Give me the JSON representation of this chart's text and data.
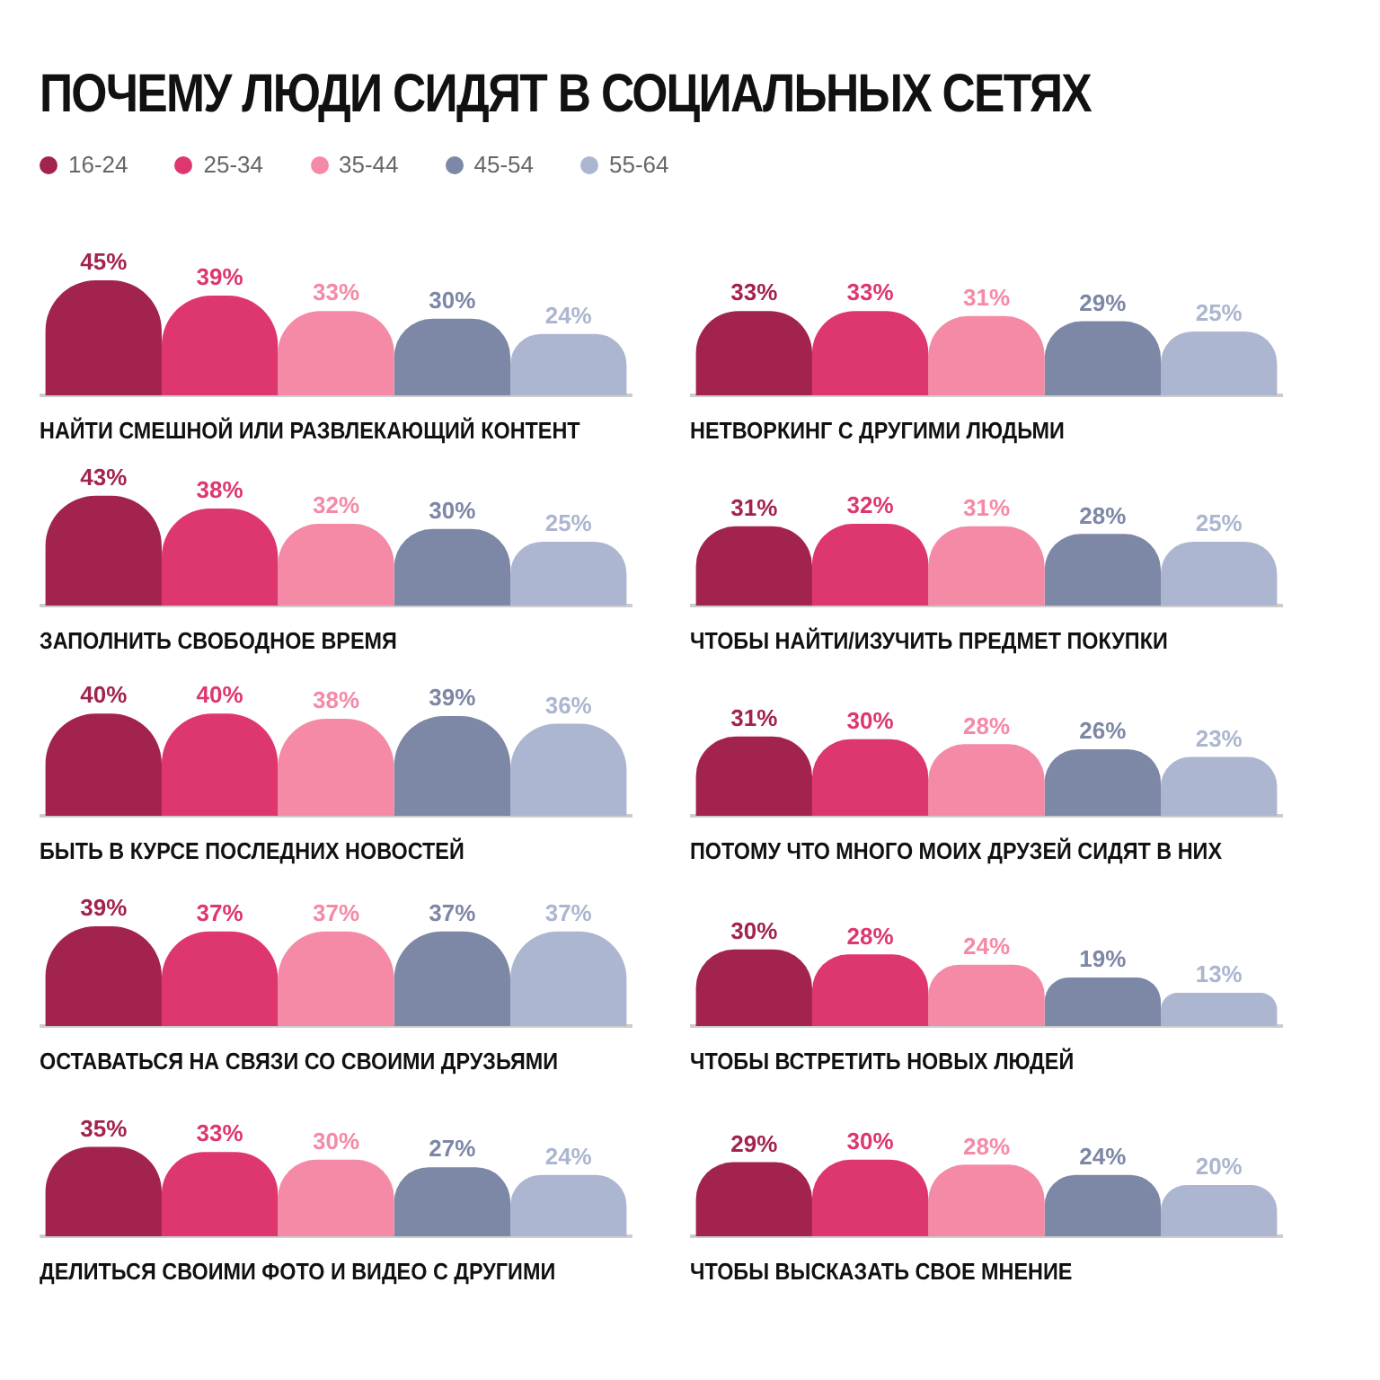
{
  "chart_data": [
    {
      "type": "bar",
      "title": "ПОЧЕМУ ЛЮДИ СИДЯТ В СОЦИАЛЬНЫХ СЕТЯХ",
      "legend": "top left",
      "xlabel": "НАЙТИ СМЕШНОЙ ИЛИ РАЗВЛЕКАЮЩИЙ КОНТЕНТ",
      "categories": [
        null
      ],
      "series": [
        {
          "name": "16-24",
          "color": "#a3234f",
          "values": [
            45
          ],
          "value_labels": [
            "45%"
          ]
        },
        {
          "name": "25-34",
          "color": "#de3770",
          "values": [
            39
          ],
          "value_labels": [
            "39%"
          ]
        },
        {
          "name": "35-44",
          "color": "#f58aa6",
          "values": [
            33
          ],
          "value_labels": [
            "33%"
          ]
        },
        {
          "name": "45-54",
          "color": "#7d87a6",
          "values": [
            30
          ],
          "value_labels": [
            "30%"
          ]
        },
        {
          "name": "55-64",
          "color": "#adb6d0",
          "values": [
            24
          ],
          "value_labels": [
            "24%"
          ]
        }
      ]
    },
    {
      "type": "bar",
      "xlabel": "НЕТВОРКИНГ С ДРУГИМИ ЛЮДЬМИ",
      "categories": [
        null
      ],
      "series": [
        {
          "color": "#a3234f",
          "values": [
            33
          ],
          "value_labels": [
            "33%"
          ]
        },
        {
          "color": "#de3770",
          "values": [
            33
          ],
          "value_labels": [
            "33%"
          ]
        },
        {
          "color": "#f58aa6",
          "values": [
            31
          ],
          "value_labels": [
            "31%"
          ]
        },
        {
          "color": "#7d87a6",
          "values": [
            29
          ],
          "value_labels": [
            "29%"
          ]
        },
        {
          "color": "#adb6d0",
          "values": [
            25
          ],
          "value_labels": [
            "25%"
          ]
        }
      ]
    },
    {
      "type": "bar",
      "xlabel": "ЗАПОЛНИТЬ СВОБОДНОЕ ВРЕМЯ",
      "categories": [
        null
      ],
      "series": [
        {
          "color": "#a3234f",
          "values": [
            43
          ],
          "value_labels": [
            "43%"
          ]
        },
        {
          "color": "#de3770",
          "values": [
            38
          ],
          "value_labels": [
            "38%"
          ]
        },
        {
          "color": "#f58aa6",
          "values": [
            32
          ],
          "value_labels": [
            "32%"
          ]
        },
        {
          "color": "#7d87a6",
          "values": [
            30
          ],
          "value_labels": [
            "30%"
          ]
        },
        {
          "color": "#adb6d0",
          "values": [
            25
          ],
          "value_labels": [
            "25%"
          ]
        }
      ]
    },
    {
      "type": "bar",
      "xlabel": "ЧТОБЫ НАЙТИ/ИЗУЧИТЬ ПРЕДМЕТ ПОКУПКИ",
      "categories": [
        null
      ],
      "series": [
        {
          "color": "#a3234f",
          "values": [
            31
          ],
          "value_labels": [
            "31%"
          ]
        },
        {
          "color": "#de3770",
          "values": [
            32
          ],
          "value_labels": [
            "32%"
          ]
        },
        {
          "color": "#f58aa6",
          "values": [
            31
          ],
          "value_labels": [
            "31%"
          ]
        },
        {
          "color": "#7d87a6",
          "values": [
            28
          ],
          "value_labels": [
            "28%"
          ]
        },
        {
          "color": "#adb6d0",
          "values": [
            25
          ],
          "value_labels": [
            "25%"
          ]
        }
      ]
    },
    {
      "type": "bar",
      "xlabel": "БЫТЬ В КУРСЕ ПОСЛЕДНИХ НОВОСТЕЙ",
      "categories": [
        null
      ],
      "series": [
        {
          "color": "#a3234f",
          "values": [
            40
          ],
          "value_labels": [
            "40%"
          ]
        },
        {
          "color": "#de3770",
          "values": [
            40
          ],
          "value_labels": [
            "40%"
          ]
        },
        {
          "color": "#f58aa6",
          "values": [
            38
          ],
          "value_labels": [
            "38%"
          ]
        },
        {
          "color": "#7d87a6",
          "values": [
            39
          ],
          "value_labels": [
            "39%"
          ]
        },
        {
          "color": "#adb6d0",
          "values": [
            36
          ],
          "value_labels": [
            "36%"
          ]
        }
      ]
    },
    {
      "type": "bar",
      "xlabel": "ПОТОМУ ЧТО МНОГО МОИХ ДРУЗЕЙ СИДЯТ В НИХ",
      "categories": [
        null
      ],
      "series": [
        {
          "color": "#a3234f",
          "values": [
            31
          ],
          "value_labels": [
            "31%"
          ]
        },
        {
          "color": "#de3770",
          "values": [
            30
          ],
          "value_labels": [
            "30%"
          ]
        },
        {
          "color": "#f58aa6",
          "values": [
            28
          ],
          "value_labels": [
            "28%"
          ]
        },
        {
          "color": "#7d87a6",
          "values": [
            26
          ],
          "value_labels": [
            "26%"
          ]
        },
        {
          "color": "#adb6d0",
          "values": [
            23
          ],
          "value_labels": [
            "23%"
          ]
        }
      ]
    },
    {
      "type": "bar",
      "xlabel": "ОСТАВАТЬСЯ НА СВЯЗИ СО СВОИМИ ДРУЗЬЯМИ",
      "categories": [
        null
      ],
      "series": [
        {
          "color": "#a3234f",
          "values": [
            39
          ],
          "value_labels": [
            "39%"
          ]
        },
        {
          "color": "#de3770",
          "values": [
            37
          ],
          "value_labels": [
            "37%"
          ]
        },
        {
          "color": "#f58aa6",
          "values": [
            37
          ],
          "value_labels": [
            "37%"
          ]
        },
        {
          "color": "#7d87a6",
          "values": [
            37
          ],
          "value_labels": [
            "37%"
          ]
        },
        {
          "color": "#adb6d0",
          "values": [
            37
          ],
          "value_labels": [
            "37%"
          ]
        }
      ]
    },
    {
      "type": "bar",
      "xlabel": "ЧТОБЫ ВСТРЕТИТЬ НОВЫХ ЛЮДЕЙ",
      "categories": [
        null
      ],
      "series": [
        {
          "color": "#a3234f",
          "values": [
            30
          ],
          "value_labels": [
            "30%"
          ]
        },
        {
          "color": "#de3770",
          "values": [
            28
          ],
          "value_labels": [
            "28%"
          ]
        },
        {
          "color": "#f58aa6",
          "values": [
            24
          ],
          "value_labels": [
            "24%"
          ]
        },
        {
          "color": "#7d87a6",
          "values": [
            19
          ],
          "value_labels": [
            "19%"
          ]
        },
        {
          "color": "#adb6d0",
          "values": [
            13
          ],
          "value_labels": [
            "13%"
          ]
        }
      ]
    },
    {
      "type": "bar",
      "xlabel": "ДЕЛИТЬСЯ СВОИМИ ФОТО И ВИДЕО С ДРУГИМИ",
      "categories": [
        null
      ],
      "series": [
        {
          "color": "#a3234f",
          "values": [
            35
          ],
          "value_labels": [
            "35%"
          ]
        },
        {
          "color": "#de3770",
          "values": [
            33
          ],
          "value_labels": [
            "33%"
          ]
        },
        {
          "color": "#f58aa6",
          "values": [
            30
          ],
          "value_labels": [
            "30%"
          ]
        },
        {
          "color": "#7d87a6",
          "values": [
            27
          ],
          "value_labels": [
            "27%"
          ]
        },
        {
          "color": "#adb6d0",
          "values": [
            24
          ],
          "value_labels": [
            "24%"
          ]
        }
      ]
    },
    {
      "type": "bar",
      "xlabel": "ЧТОБЫ ВЫСКАЗАТЬ СВОЕ МНЕНИЕ",
      "categories": [
        null
      ],
      "series": [
        {
          "color": "#a3234f",
          "values": [
            29
          ],
          "value_labels": [
            "29%"
          ]
        },
        {
          "color": "#de3770",
          "values": [
            30
          ],
          "value_labels": [
            "30%"
          ]
        },
        {
          "color": "#f58aa6",
          "values": [
            28
          ],
          "value_labels": [
            "28%"
          ]
        },
        {
          "color": "#7d87a6",
          "values": [
            24
          ],
          "value_labels": [
            "24%"
          ]
        },
        {
          "color": "#adb6d0",
          "values": [
            20
          ],
          "value_labels": [
            "20%"
          ]
        }
      ]
    }
  ]
}
